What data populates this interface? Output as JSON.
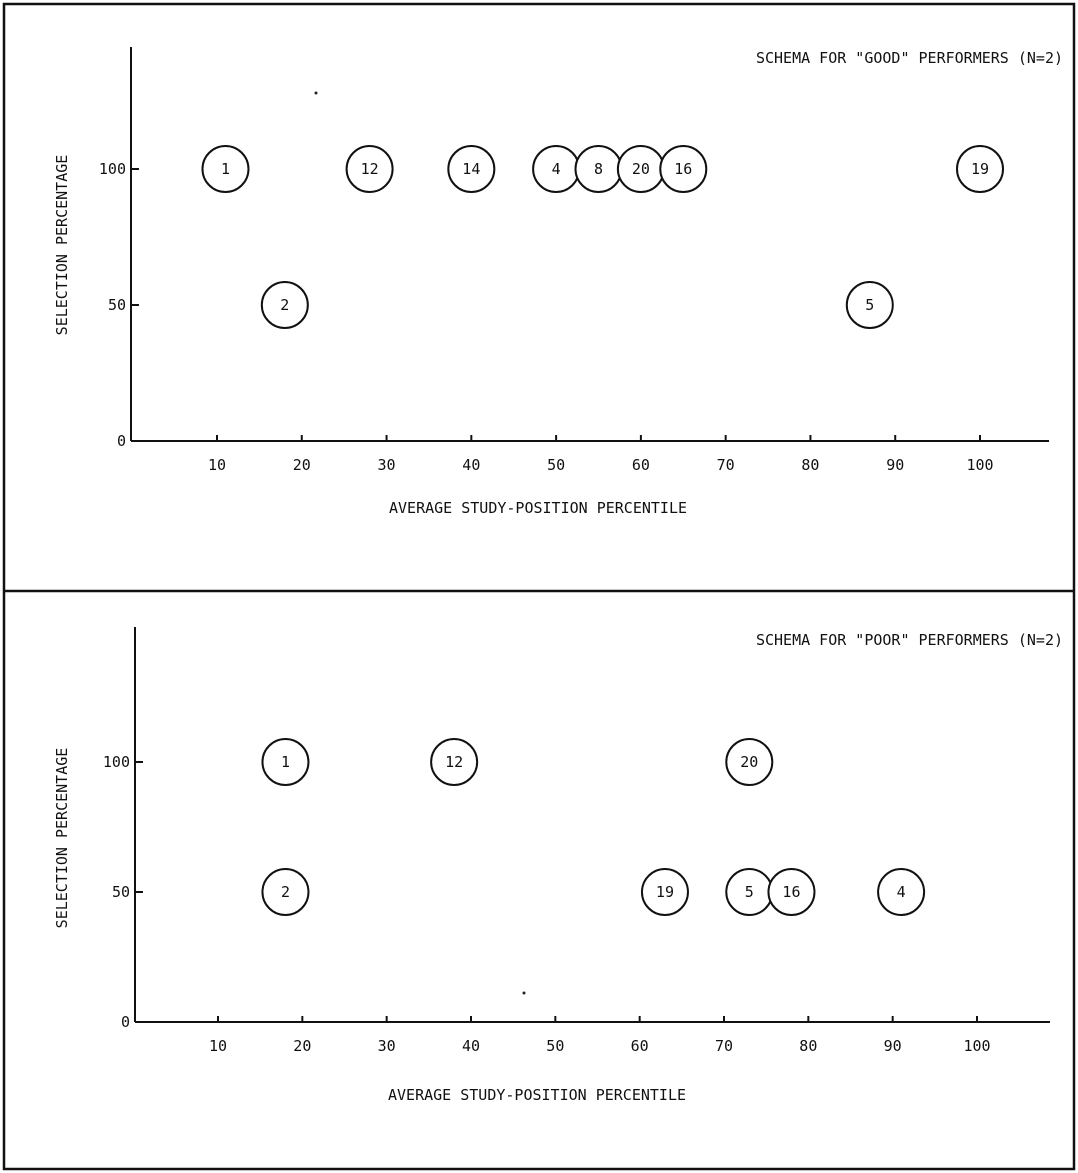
{
  "chart_data": [
    {
      "type": "scatter",
      "title": "SCHEMA FOR \"GOOD\" PERFORMERS (N=2)",
      "xlabel": "AVERAGE STUDY-POSITION PERCENTILE",
      "ylabel": "SELECTION PERCENTAGE",
      "xlim": [
        0,
        108
      ],
      "ylim": [
        0,
        150
      ],
      "xticks": [
        10,
        20,
        30,
        40,
        50,
        60,
        70,
        80,
        90,
        100
      ],
      "yticks": [
        0,
        50,
        100
      ],
      "grid": false,
      "points": [
        {
          "label": "1",
          "x": 11,
          "y": 100
        },
        {
          "label": "2",
          "x": 18,
          "y": 50
        },
        {
          "label": "12",
          "x": 28,
          "y": 100
        },
        {
          "label": "14",
          "x": 40,
          "y": 100
        },
        {
          "label": "4",
          "x": 50,
          "y": 100
        },
        {
          "label": "8",
          "x": 55,
          "y": 100
        },
        {
          "label": "20",
          "x": 60,
          "y": 100
        },
        {
          "label": "16",
          "x": 65,
          "y": 100
        },
        {
          "label": "5",
          "x": 87,
          "y": 50
        },
        {
          "label": "19",
          "x": 100,
          "y": 100
        }
      ]
    },
    {
      "type": "scatter",
      "title": "SCHEMA FOR \"POOR\" PERFORMERS (N=2)",
      "xlabel": "AVERAGE STUDY-POSITION PERCENTILE",
      "ylabel": "SELECTION PERCENTAGE",
      "xlim": [
        0,
        108
      ],
      "ylim": [
        0,
        150
      ],
      "xticks": [
        10,
        20,
        30,
        40,
        50,
        60,
        70,
        80,
        90,
        100
      ],
      "yticks": [
        0,
        50,
        100
      ],
      "grid": false,
      "points": [
        {
          "label": "1",
          "x": 18,
          "y": 100
        },
        {
          "label": "2",
          "x": 18,
          "y": 50
        },
        {
          "label": "12",
          "x": 38,
          "y": 100
        },
        {
          "label": "20",
          "x": 73,
          "y": 100
        },
        {
          "label": "19",
          "x": 63,
          "y": 50
        },
        {
          "label": "5",
          "x": 73,
          "y": 50
        },
        {
          "label": "16",
          "x": 78,
          "y": 50
        },
        {
          "label": "4",
          "x": 91,
          "y": 50
        }
      ]
    }
  ]
}
